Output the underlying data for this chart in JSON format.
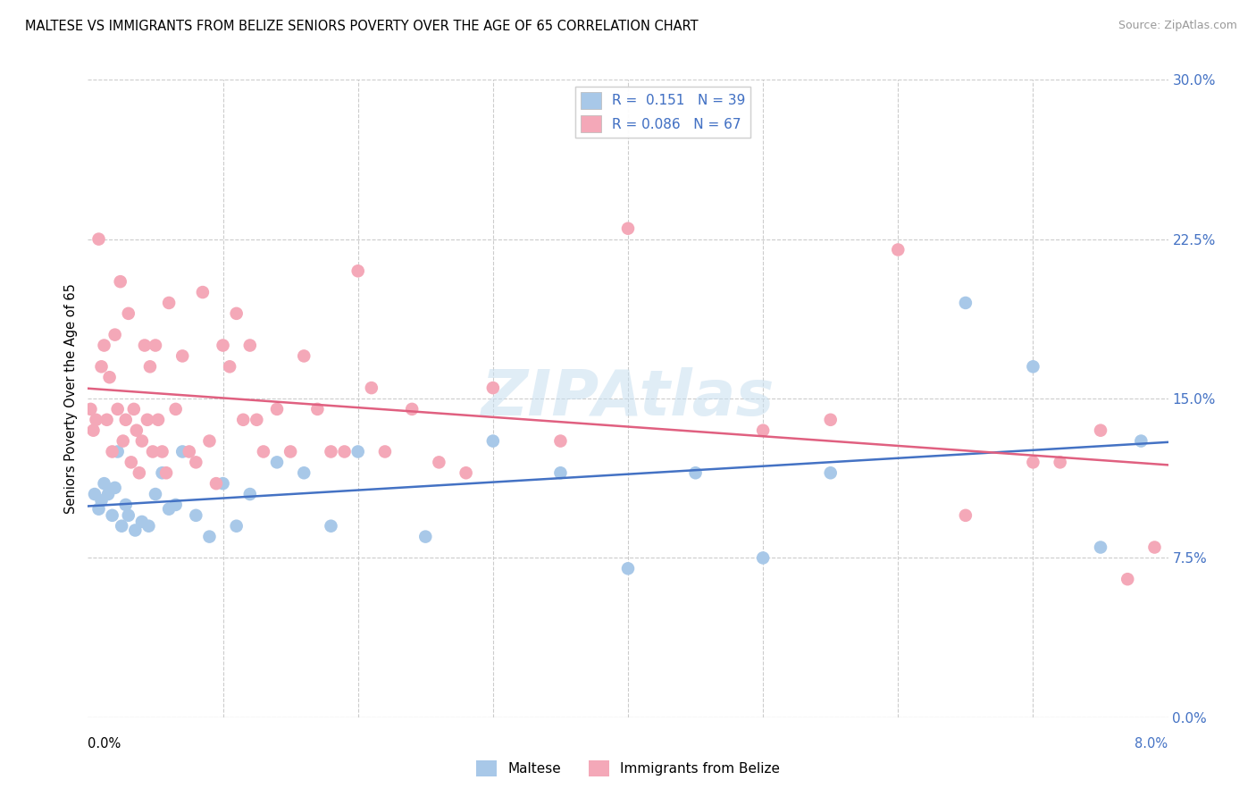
{
  "title": "MALTESE VS IMMIGRANTS FROM BELIZE SENIORS POVERTY OVER THE AGE OF 65 CORRELATION CHART",
  "source": "Source: ZipAtlas.com",
  "ylabel": "Seniors Poverty Over the Age of 65",
  "ytick_values": [
    0.0,
    7.5,
    15.0,
    22.5,
    30.0
  ],
  "xlim": [
    0.0,
    8.0
  ],
  "ylim": [
    0.0,
    30.0
  ],
  "maltese_color": "#a8c8e8",
  "belize_color": "#f4a8b8",
  "maltese_line_color": "#4472c4",
  "belize_line_color": "#e06080",
  "maltese_R": 0.151,
  "maltese_N": 39,
  "belize_R": 0.086,
  "belize_N": 67,
  "legend_label_maltese": "Maltese",
  "legend_label_belize": "Immigrants from Belize",
  "watermark": "ZIPAtlas",
  "maltese_x": [
    0.05,
    0.08,
    0.1,
    0.12,
    0.15,
    0.18,
    0.2,
    0.22,
    0.25,
    0.28,
    0.3,
    0.35,
    0.4,
    0.45,
    0.5,
    0.55,
    0.6,
    0.65,
    0.7,
    0.8,
    0.9,
    1.0,
    1.1,
    1.2,
    1.4,
    1.6,
    1.8,
    2.0,
    2.5,
    3.0,
    3.5,
    4.0,
    4.5,
    5.0,
    5.5,
    6.5,
    7.0,
    7.5,
    7.8
  ],
  "maltese_y": [
    10.5,
    9.8,
    10.2,
    11.0,
    10.5,
    9.5,
    10.8,
    12.5,
    9.0,
    10.0,
    9.5,
    8.8,
    9.2,
    9.0,
    10.5,
    11.5,
    9.8,
    10.0,
    12.5,
    9.5,
    8.5,
    11.0,
    9.0,
    10.5,
    12.0,
    11.5,
    9.0,
    12.5,
    8.5,
    13.0,
    11.5,
    7.0,
    11.5,
    7.5,
    11.5,
    19.5,
    16.5,
    8.0,
    13.0
  ],
  "belize_x": [
    0.02,
    0.04,
    0.06,
    0.08,
    0.1,
    0.12,
    0.14,
    0.16,
    0.18,
    0.2,
    0.22,
    0.24,
    0.26,
    0.28,
    0.3,
    0.32,
    0.34,
    0.36,
    0.38,
    0.4,
    0.42,
    0.44,
    0.46,
    0.48,
    0.5,
    0.52,
    0.55,
    0.58,
    0.6,
    0.65,
    0.7,
    0.75,
    0.8,
    0.85,
    0.9,
    0.95,
    1.0,
    1.05,
    1.1,
    1.15,
    1.2,
    1.25,
    1.3,
    1.4,
    1.5,
    1.6,
    1.7,
    1.8,
    1.9,
    2.0,
    2.1,
    2.2,
    2.4,
    2.6,
    2.8,
    3.0,
    3.5,
    4.0,
    5.0,
    5.5,
    6.0,
    6.5,
    7.0,
    7.2,
    7.5,
    7.7,
    7.9
  ],
  "belize_y": [
    14.5,
    13.5,
    14.0,
    22.5,
    16.5,
    17.5,
    14.0,
    16.0,
    12.5,
    18.0,
    14.5,
    20.5,
    13.0,
    14.0,
    19.0,
    12.0,
    14.5,
    13.5,
    11.5,
    13.0,
    17.5,
    14.0,
    16.5,
    12.5,
    17.5,
    14.0,
    12.5,
    11.5,
    19.5,
    14.5,
    17.0,
    12.5,
    12.0,
    20.0,
    13.0,
    11.0,
    17.5,
    16.5,
    19.0,
    14.0,
    17.5,
    14.0,
    12.5,
    14.5,
    12.5,
    17.0,
    14.5,
    12.5,
    12.5,
    21.0,
    15.5,
    12.5,
    14.5,
    12.0,
    11.5,
    15.5,
    13.0,
    23.0,
    13.5,
    14.0,
    22.0,
    9.5,
    12.0,
    12.0,
    13.5,
    6.5,
    8.0
  ]
}
